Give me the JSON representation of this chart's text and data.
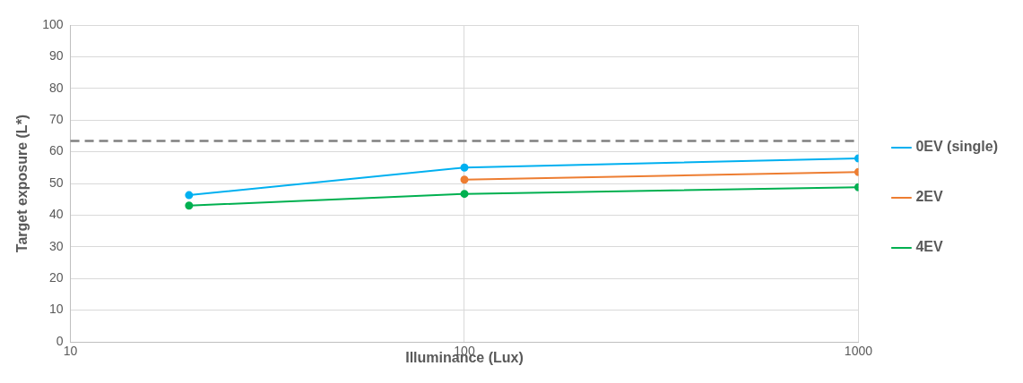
{
  "chart_data": {
    "type": "line",
    "xlabel": "Illuminance (Lux)",
    "ylabel": "Target exposure (L*)",
    "log": "x",
    "xlim": [
      10,
      1000
    ],
    "xticks": [
      10,
      100,
      1000
    ],
    "ylim": [
      0,
      100
    ],
    "yticks": [
      0,
      10,
      20,
      30,
      40,
      50,
      60,
      70,
      80,
      90,
      100
    ],
    "grid": true,
    "legend": "right",
    "marker": "circle",
    "line_style": "solid",
    "series": [
      {
        "name": "0EV (single)",
        "color": "#00b0f0",
        "x": [
          20,
          100,
          1000
        ],
        "values": [
          46.3,
          55.0,
          57.9
        ]
      },
      {
        "name": "2EV",
        "color": "#ed7d31",
        "x": [
          100,
          1000
        ],
        "values": [
          51.2,
          53.6
        ]
      },
      {
        "name": "4EV",
        "color": "#00b050",
        "x": [
          20,
          100,
          1000
        ],
        "values": [
          43.0,
          46.7,
          48.8
        ]
      }
    ],
    "ref_lines": [
      {
        "axis": "y",
        "value": 63.4,
        "color": "#808080",
        "line_style": "dashed"
      }
    ]
  }
}
